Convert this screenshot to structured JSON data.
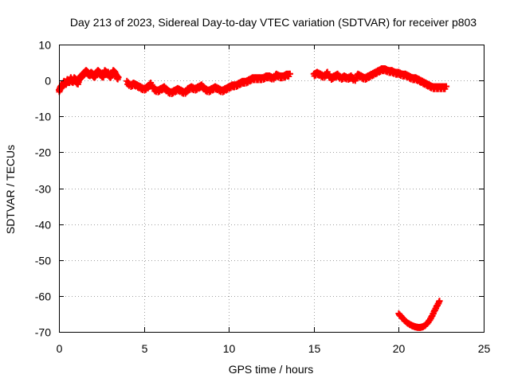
{
  "chart_data": {
    "type": "scatter",
    "title": "Day 213 of 2023, Sidereal Day-to-day VTEC variation (SDTVAR) for receiver p803",
    "xlabel": "GPS time / hours",
    "ylabel": "SDTVAR / TECUs",
    "xlim": [
      0,
      25
    ],
    "ylim": [
      -70,
      10
    ],
    "xticks": [
      0,
      5,
      10,
      15,
      20,
      25
    ],
    "yticks": [
      10,
      0,
      -10,
      -20,
      -30,
      -40,
      -50,
      -60,
      -70
    ],
    "grid": true,
    "marker": "plus",
    "colors": {
      "series": "#ff0000",
      "grid": "#a0a0a0",
      "axes": "#000000"
    },
    "series": [
      {
        "name": "SDTVAR",
        "segments": [
          {
            "x": [
              0.0,
              0.1,
              0.2,
              0.3,
              0.4,
              0.5,
              0.6,
              0.7,
              0.8,
              0.9,
              1.0,
              1.1,
              1.2,
              1.3,
              1.4,
              1.5,
              1.6,
              1.7,
              1.8,
              1.9,
              2.0,
              2.1,
              2.2,
              2.3,
              2.4,
              2.5,
              2.6,
              2.7,
              2.8,
              2.9,
              3.0,
              3.1,
              3.2,
              3.3,
              3.4,
              3.5
            ],
            "y": [
              -3.0,
              -2.0,
              -1.5,
              -0.5,
              -1.0,
              0.0,
              -0.5,
              0.5,
              -0.5,
              0.5,
              0.0,
              -1.0,
              0.5,
              1.0,
              1.5,
              2.0,
              2.5,
              2.0,
              1.5,
              2.0,
              1.5,
              1.0,
              2.0,
              2.5,
              2.0,
              1.5,
              1.0,
              2.5,
              2.0,
              2.0,
              1.0,
              1.5,
              2.5,
              2.0,
              1.0,
              0.5
            ]
          },
          {
            "x": [
              4.0,
              4.2,
              4.4,
              4.6,
              4.8,
              5.0,
              5.2,
              5.4,
              5.6,
              5.8,
              6.0,
              6.2,
              6.4,
              6.6,
              6.8,
              7.0,
              7.2,
              7.4,
              7.6,
              7.8,
              8.0,
              8.2,
              8.4,
              8.6,
              8.8,
              9.0,
              9.2,
              9.4,
              9.6,
              9.8,
              10.0,
              10.2,
              10.4,
              10.6,
              10.8,
              11.0,
              11.2,
              11.4,
              11.6,
              11.8,
              12.0,
              12.2,
              12.4,
              12.6,
              12.8,
              13.0,
              13.2,
              13.4,
              13.6
            ],
            "y": [
              -0.5,
              -1.5,
              -1.0,
              -1.5,
              -2.0,
              -2.5,
              -2.0,
              -1.0,
              -2.5,
              -3.0,
              -2.5,
              -2.0,
              -3.0,
              -3.5,
              -3.0,
              -2.5,
              -3.0,
              -3.5,
              -2.5,
              -2.0,
              -2.5,
              -2.0,
              -1.5,
              -2.5,
              -3.0,
              -2.5,
              -2.0,
              -2.5,
              -3.0,
              -2.5,
              -2.0,
              -1.5,
              -1.5,
              -1.0,
              -0.5,
              -0.5,
              0.0,
              0.5,
              0.5,
              0.5,
              0.5,
              1.0,
              1.0,
              0.5,
              1.5,
              1.0,
              1.0,
              1.5,
              1.5
            ]
          },
          {
            "x": [
              15.0,
              15.2,
              15.4,
              15.6,
              15.8,
              16.0,
              16.2,
              16.4,
              16.6,
              16.8,
              17.0,
              17.2,
              17.4,
              17.6,
              17.8,
              18.0,
              18.2,
              18.4,
              18.6,
              18.8,
              19.0,
              19.2,
              19.4,
              19.6,
              19.8,
              20.0,
              20.2,
              20.4,
              20.6,
              20.8,
              21.0,
              21.2,
              21.4,
              21.6,
              21.8,
              22.0,
              22.2,
              22.4,
              22.6,
              22.8
            ],
            "y": [
              1.5,
              2.0,
              1.5,
              1.0,
              2.0,
              0.5,
              1.0,
              1.5,
              0.5,
              1.0,
              0.5,
              1.0,
              0.0,
              1.5,
              1.0,
              0.5,
              1.0,
              1.5,
              2.0,
              2.5,
              3.0,
              3.0,
              2.5,
              2.5,
              2.0,
              2.0,
              1.5,
              1.5,
              1.0,
              0.5,
              0.5,
              0.0,
              -0.5,
              -1.0,
              -1.5,
              -2.0,
              -2.0,
              -2.0,
              -2.0,
              -2.0
            ]
          },
          {
            "x": [
              20.0,
              20.15,
              20.3,
              20.45,
              20.6,
              20.75,
              20.9,
              21.05,
              21.2,
              21.35,
              21.5,
              21.65,
              21.8,
              21.95,
              22.1,
              22.25,
              22.4
            ],
            "y": [
              -65.0,
              -65.8,
              -66.6,
              -67.3,
              -67.8,
              -68.2,
              -68.5,
              -68.7,
              -68.8,
              -68.7,
              -68.4,
              -67.8,
              -66.9,
              -65.7,
              -64.2,
              -62.8,
              -61.5
            ]
          }
        ]
      }
    ]
  }
}
